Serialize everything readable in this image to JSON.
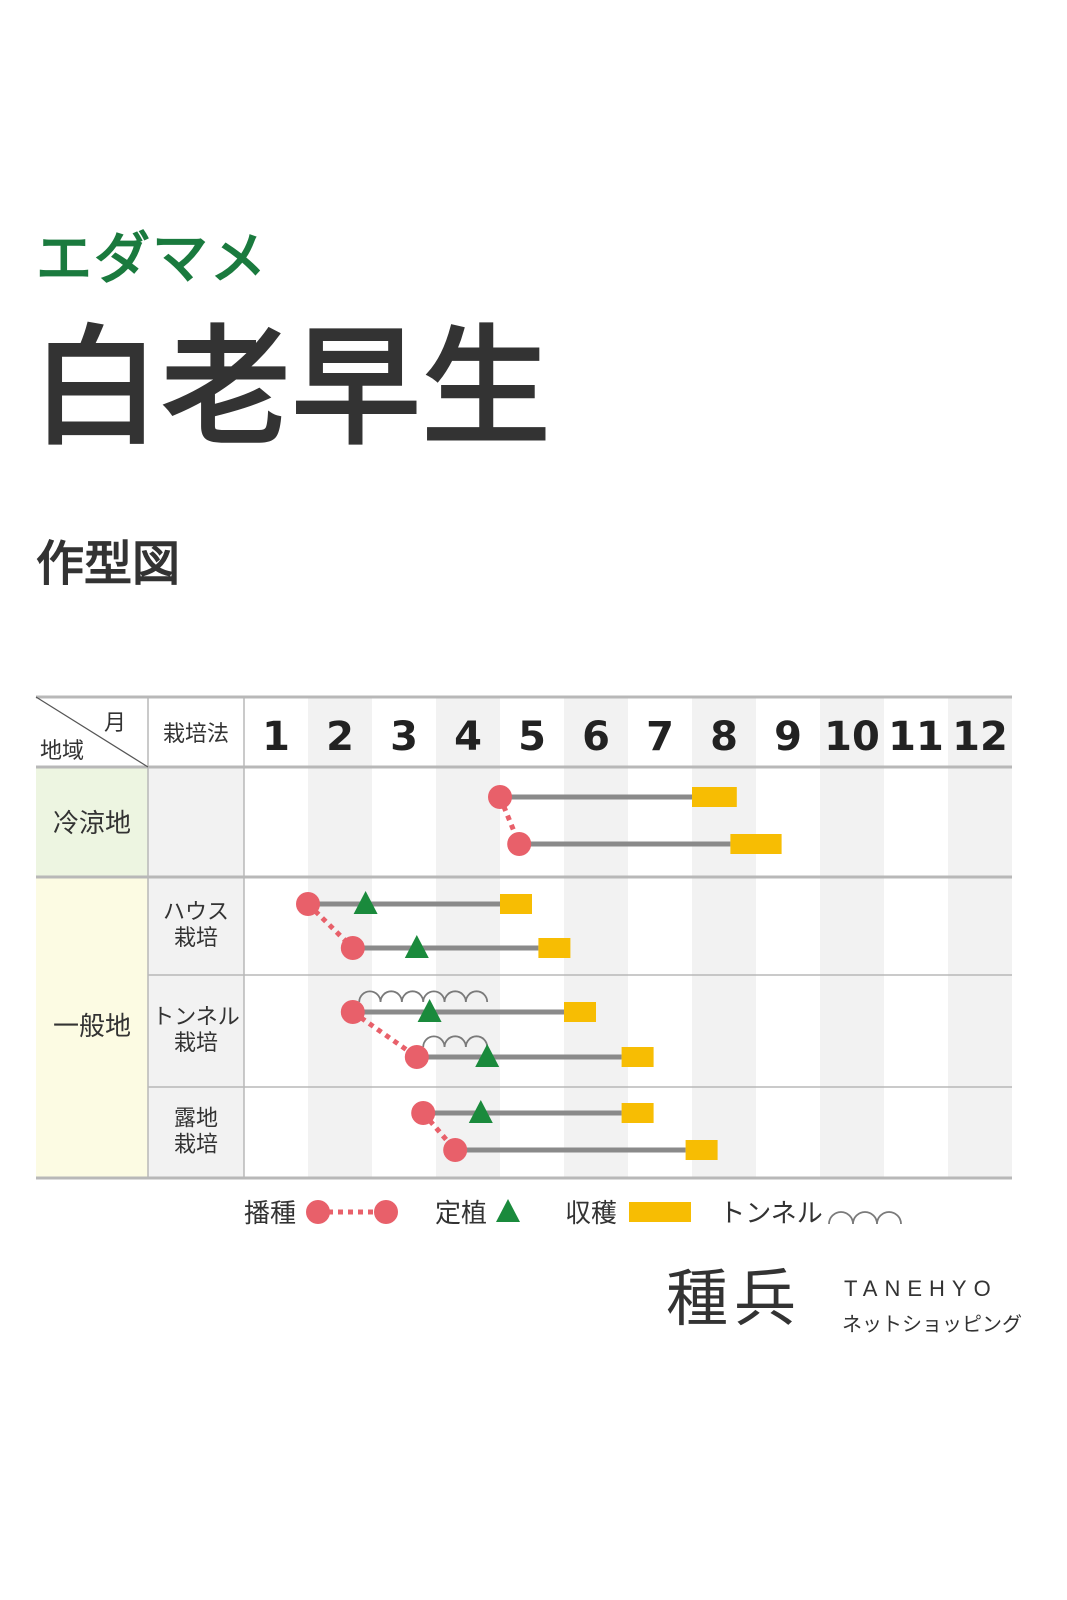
{
  "header": {
    "category": "エダマメ",
    "product_name": "白老早生",
    "chart_heading": "作型図"
  },
  "chart_data": {
    "type": "table",
    "title": "作型図",
    "header": {
      "month_label": "月",
      "region_label": "地域",
      "method_label": "栽培法",
      "months": [
        "1",
        "2",
        "3",
        "4",
        "5",
        "6",
        "7",
        "8",
        "9",
        "10",
        "11",
        "12"
      ]
    },
    "regions": [
      {
        "name": "冷涼地",
        "color": "#edf5e1",
        "methods": [
          {
            "name": "",
            "schedules": [
              {
                "sow": 5.0,
                "plant": null,
                "harvest": [
                  8.0,
                  8.7
                ]
              },
              {
                "sow": 5.3,
                "plant": null,
                "harvest": [
                  8.6,
                  9.4
                ]
              }
            ],
            "linked_sowing": true,
            "tunnels": []
          }
        ]
      },
      {
        "name": "一般地",
        "color": "#fcfbe3",
        "methods": [
          {
            "name": "ハウス\n栽培",
            "schedules": [
              {
                "sow": 2.0,
                "plant": 2.9,
                "harvest": [
                  5.0,
                  5.5
                ]
              },
              {
                "sow": 2.7,
                "plant": 3.7,
                "harvest": [
                  5.6,
                  6.1
                ]
              }
            ],
            "linked_sowing": true,
            "tunnels": []
          },
          {
            "name": "トンネル\n栽培",
            "schedules": [
              {
                "sow": 2.7,
                "plant": 3.9,
                "harvest": [
                  6.0,
                  6.5
                ]
              },
              {
                "sow": 3.7,
                "plant": 4.8,
                "harvest": [
                  6.9,
                  7.4
                ]
              }
            ],
            "linked_sowing": true,
            "tunnels": [
              {
                "row": 0,
                "start": 2.8,
                "end": 4.8
              },
              {
                "row": 1,
                "start": 3.8,
                "end": 4.8
              }
            ]
          },
          {
            "name": "露地\n栽培",
            "schedules": [
              {
                "sow": 3.8,
                "plant": 4.7,
                "harvest": [
                  6.9,
                  7.4
                ]
              },
              {
                "sow": 4.3,
                "plant": null,
                "harvest": [
                  7.9,
                  8.4
                ]
              }
            ],
            "linked_sowing": true,
            "tunnels": []
          }
        ]
      }
    ],
    "legend": [
      {
        "label": "播種",
        "symbol": "sowing-dots"
      },
      {
        "label": "定植",
        "symbol": "triangle"
      },
      {
        "label": "収穫",
        "symbol": "bar"
      },
      {
        "label": "トンネル",
        "symbol": "arches"
      }
    ],
    "colors": {
      "sow": "#e8606a",
      "plant": "#1a8a3c",
      "harvest": "#f7bd03",
      "growth_line": "#8a8a8a",
      "tunnel": "#7a7a7a",
      "title_green": "#1a7a3e",
      "even_column": "#f2f2f2",
      "grid": "#b8b8b8"
    }
  },
  "brand": {
    "mark": "種兵",
    "name": "TANEHYO",
    "tagline": "ネットショッピング"
  }
}
